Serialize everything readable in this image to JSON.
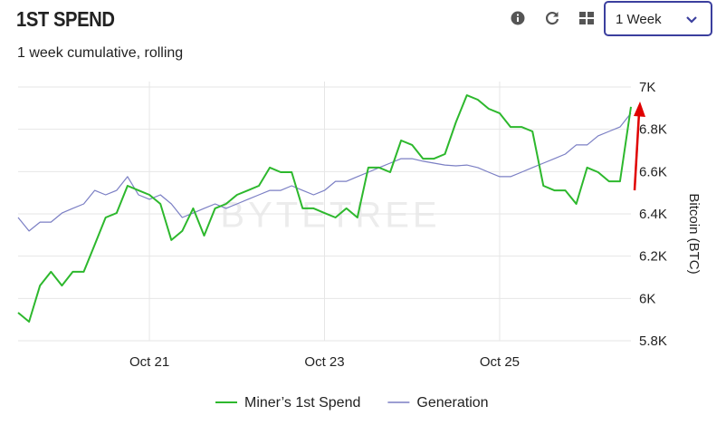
{
  "header": {
    "title": "1ST SPEND",
    "subtitle": "1 week cumulative, rolling",
    "period": "1 Week"
  },
  "chart_data": {
    "type": "line",
    "watermark": "BYTETREE",
    "categories": [
      null,
      null,
      null,
      null,
      null,
      null,
      null,
      null,
      null,
      null,
      null,
      null,
      "Oct 21",
      null,
      null,
      null,
      null,
      null,
      null,
      null,
      null,
      null,
      null,
      null,
      null,
      null,
      null,
      null,
      "Oct 23",
      null,
      null,
      null,
      null,
      null,
      null,
      null,
      null,
      null,
      null,
      null,
      null,
      null,
      null,
      null,
      "Oct 25",
      null,
      null,
      null,
      null,
      null,
      null,
      null,
      null,
      null,
      null,
      null,
      null
    ],
    "series": [
      {
        "name": "Miner’s 1st Spend",
        "color": "#2db82d",
        "values": [
          5933,
          5890,
          6061,
          6126,
          6061,
          6126,
          6126,
          6254,
          6383,
          6404,
          6533,
          6511,
          6490,
          6447,
          6276,
          6319,
          6426,
          6297,
          6426,
          6447,
          6490,
          6511,
          6533,
          6619,
          6597,
          6597,
          6426,
          6426,
          6404,
          6383,
          6426,
          6383,
          6619,
          6619,
          6597,
          6747,
          6726,
          6661,
          6661,
          6683,
          6833,
          6961,
          6940,
          6897,
          6876,
          6811,
          6811,
          6790,
          6533,
          6511,
          6511,
          6447,
          6619,
          6597,
          6554,
          6554,
          6906
        ]
      },
      {
        "name": "Generation",
        "color": "#7b7fc4",
        "values": [
          6383,
          6319,
          6361,
          6361,
          6404,
          6426,
          6447,
          6511,
          6490,
          6511,
          6576,
          6490,
          6469,
          6490,
          6447,
          6383,
          6404,
          6426,
          6447,
          6426,
          6447,
          6469,
          6490,
          6511,
          6511,
          6533,
          6511,
          6490,
          6511,
          6554,
          6554,
          6576,
          6597,
          6619,
          6640,
          6661,
          6661,
          6649,
          6640,
          6631,
          6627,
          6631,
          6619,
          6597,
          6576,
          6576,
          6597,
          6619,
          6640,
          6661,
          6683,
          6726,
          6726,
          6769,
          6790,
          6811,
          6876
        ]
      }
    ],
    "ylim": [
      5800,
      7000
    ],
    "yticks": [
      {
        "value": 5800,
        "label": "5.8K"
      },
      {
        "value": 6000,
        "label": "6K"
      },
      {
        "value": 6200,
        "label": "6.2K"
      },
      {
        "value": 6400,
        "label": "6.4K"
      },
      {
        "value": 6600,
        "label": "6.6K"
      },
      {
        "value": 6800,
        "label": "6.8K"
      },
      {
        "value": 7000,
        "label": "7K"
      }
    ],
    "y_label": "Bitcoin (BTC)",
    "y_axis_side": "right",
    "grid": true,
    "legend": "bottom"
  }
}
